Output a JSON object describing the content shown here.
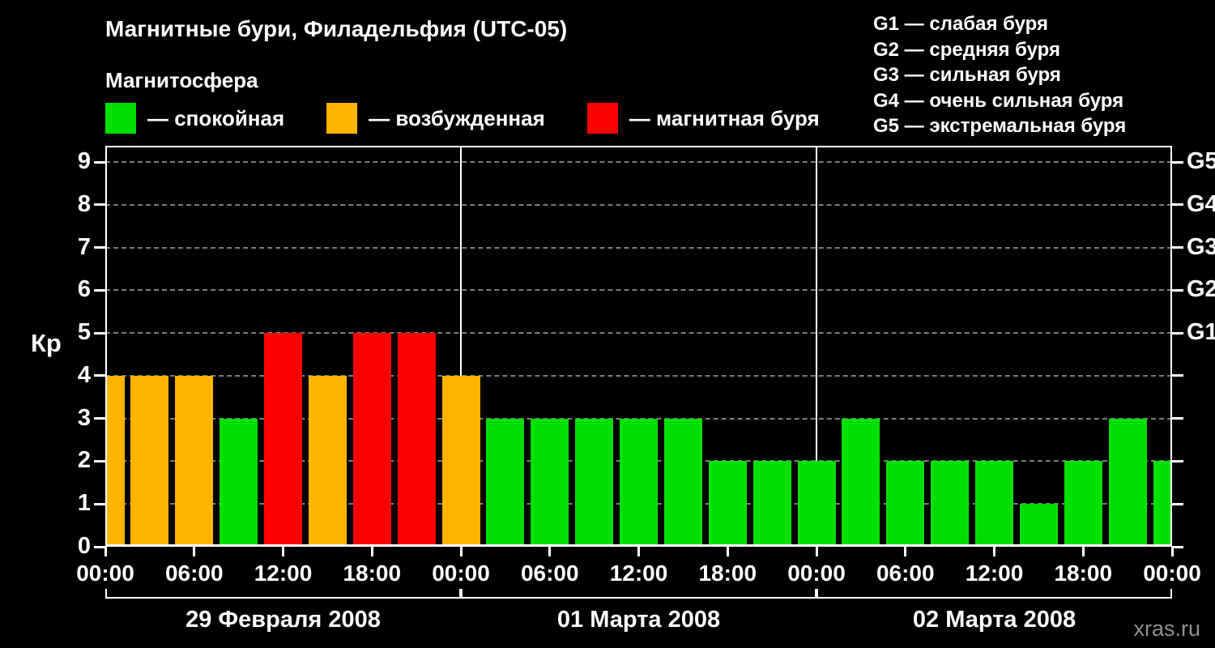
{
  "title": "Магнитные бури, Филадельфия (UTC-05)",
  "subtitle": "Магнитосфера",
  "legend": {
    "items": [
      {
        "label": "— спокойная",
        "color": "#00e000"
      },
      {
        "label": "— возбужденная",
        "color": "#ffb400"
      },
      {
        "label": "— магнитная буря",
        "color": "#ff0000"
      }
    ]
  },
  "storm_scale": {
    "items": [
      "G1 — слабая буря",
      "G2 — средняя буря",
      "G3 — сильная буря",
      "G4 — очень сильная буря",
      "G5 — экстремальная буря"
    ]
  },
  "watermark": "xras.ru",
  "chart_data": {
    "type": "bar",
    "title": "Магнитные бури, Филадельфия (UTC-05)",
    "ylabel": "Кр",
    "ylim": [
      0,
      9
    ],
    "yticks": [
      0,
      1,
      2,
      3,
      4,
      5,
      6,
      7,
      8,
      9
    ],
    "grid": "dashed horizontal",
    "x_hours_total": 72,
    "xtick_interval_hours": 6,
    "xtick_labels": [
      "00:00",
      "06:00",
      "12:00",
      "18:00",
      "00:00",
      "06:00",
      "12:00",
      "18:00",
      "00:00",
      "06:00",
      "12:00",
      "18:00",
      "00:00"
    ],
    "days": [
      {
        "label": "29 Февраля 2008",
        "start_hour": 0,
        "end_hour": 24
      },
      {
        "label": "01 Марта 2008",
        "start_hour": 24,
        "end_hour": 48
      },
      {
        "label": "02 Марта 2008",
        "start_hour": 48,
        "end_hour": 72
      }
    ],
    "right_axis": [
      {
        "label": "G1",
        "kp": 5
      },
      {
        "label": "G2",
        "kp": 6
      },
      {
        "label": "G3",
        "kp": 7
      },
      {
        "label": "G4",
        "kp": 8
      },
      {
        "label": "G5",
        "kp": 9
      }
    ],
    "colors": {
      "quiet": "#00e000",
      "excited": "#ffb400",
      "storm": "#ff0000"
    },
    "bars": [
      {
        "hour": 0,
        "kp": 4,
        "state": "excited"
      },
      {
        "hour": 3,
        "kp": 4,
        "state": "excited"
      },
      {
        "hour": 6,
        "kp": 4,
        "state": "excited"
      },
      {
        "hour": 9,
        "kp": 3,
        "state": "quiet"
      },
      {
        "hour": 12,
        "kp": 5,
        "state": "storm"
      },
      {
        "hour": 15,
        "kp": 4,
        "state": "excited"
      },
      {
        "hour": 18,
        "kp": 5,
        "state": "storm"
      },
      {
        "hour": 21,
        "kp": 5,
        "state": "storm"
      },
      {
        "hour": 24,
        "kp": 4,
        "state": "excited"
      },
      {
        "hour": 27,
        "kp": 3,
        "state": "quiet"
      },
      {
        "hour": 30,
        "kp": 3,
        "state": "quiet"
      },
      {
        "hour": 33,
        "kp": 3,
        "state": "quiet"
      },
      {
        "hour": 36,
        "kp": 3,
        "state": "quiet"
      },
      {
        "hour": 39,
        "kp": 3,
        "state": "quiet"
      },
      {
        "hour": 42,
        "kp": 2,
        "state": "quiet"
      },
      {
        "hour": 45,
        "kp": 2,
        "state": "quiet"
      },
      {
        "hour": 48,
        "kp": 2,
        "state": "quiet"
      },
      {
        "hour": 51,
        "kp": 3,
        "state": "quiet"
      },
      {
        "hour": 54,
        "kp": 2,
        "state": "quiet"
      },
      {
        "hour": 57,
        "kp": 2,
        "state": "quiet"
      },
      {
        "hour": 60,
        "kp": 2,
        "state": "quiet"
      },
      {
        "hour": 63,
        "kp": 1,
        "state": "quiet"
      },
      {
        "hour": 66,
        "kp": 2,
        "state": "quiet"
      },
      {
        "hour": 69,
        "kp": 3,
        "state": "quiet"
      },
      {
        "hour": 72,
        "kp": 2,
        "state": "quiet"
      }
    ]
  }
}
